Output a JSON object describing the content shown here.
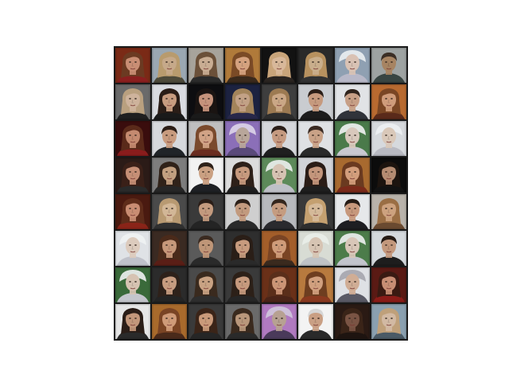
{
  "figure": {
    "description_rows": 8,
    "description_cols": 8,
    "tiles": [
      {
        "bg": "#7a2a16",
        "skin": "#c98e74",
        "hair": "#6b3a22",
        "cloth": "#8a1f1f",
        "hair_style": "long"
      },
      {
        "bg": "#9aa7b2",
        "skin": "#c6a98a",
        "hair": "#b89b6e",
        "cloth": "#4d4a3a",
        "hair_style": "long"
      },
      {
        "bg": "#a7a39b",
        "skin": "#c9ad93",
        "hair": "#6b5039",
        "cloth": "#2b2b2b",
        "hair_style": "long"
      },
      {
        "bg": "#b07a3a",
        "skin": "#d5a27f",
        "hair": "#7a4a26",
        "cloth": "#3b2a1c",
        "hair_style": "long"
      },
      {
        "bg": "#121212",
        "skin": "#d8b89a",
        "hair": "#c8a47a",
        "cloth": "#2a2420",
        "hair_style": "long"
      },
      {
        "bg": "#2a2a2a",
        "skin": "#c9ae8c",
        "hair": "#b7915f",
        "cloth": "#333",
        "hair_style": "long"
      },
      {
        "bg": "#8fa0b2",
        "skin": "#d9c2b4",
        "hair": "#e7ecef",
        "cloth": "#b8b8c8",
        "hair_style": "hat"
      },
      {
        "bg": "#9ea3a2",
        "skin": "#a78462",
        "hair": "#3b2e25",
        "cloth": "#384542",
        "hair_style": "short"
      },
      {
        "bg": "#6a6a6a",
        "skin": "#ceb39c",
        "hair": "#b9a07f",
        "cloth": "#202020",
        "hair_style": "long"
      },
      {
        "bg": "#d9dbe0",
        "skin": "#c79c80",
        "hair": "#2a1d17",
        "cloth": "#1a1a1a",
        "hair_style": "long"
      },
      {
        "bg": "#0d0d10",
        "skin": "#c5937c",
        "hair": "#1a1412",
        "cloth": "#1a1a1a",
        "hair_style": "long"
      },
      {
        "bg": "#1c2240",
        "skin": "#c2a186",
        "hair": "#a3845b",
        "cloth": "#28284a",
        "hair_style": "long"
      },
      {
        "bg": "#3e3e3e",
        "skin": "#caa786",
        "hair": "#9c7a52",
        "cloth": "#2d2d2d",
        "hair_style": "long"
      },
      {
        "bg": "#c9ccd0",
        "skin": "#c69a7e",
        "hair": "#2a1e17",
        "cloth": "#1c1c1c",
        "hair_style": "short"
      },
      {
        "bg": "#e1e3e6",
        "skin": "#c79f86",
        "hair": "#2f231c",
        "cloth": "#30333a",
        "hair_style": "short"
      },
      {
        "bg": "#b86a30",
        "skin": "#cf9c7b",
        "hair": "#7a4624",
        "cloth": "#5a2a1a",
        "hair_style": "long"
      },
      {
        "bg": "#3a0d0d",
        "skin": "#c48a70",
        "hair": "#5a2a1a",
        "cloth": "#8a1c1c",
        "hair_style": "long"
      },
      {
        "bg": "#d6d8dc",
        "skin": "#c89b7e",
        "hair": "#2b1d16",
        "cloth": "#202428",
        "hair_style": "short"
      },
      {
        "bg": "#bfbfbf",
        "skin": "#d1a386",
        "hair": "#7a4a2c",
        "cloth": "#6a2c20",
        "hair_style": "long"
      },
      {
        "bg": "#8b6fb8",
        "skin": "#b8a69a",
        "hair": "#d9d0e6",
        "cloth": "#5a4a7a",
        "hair_style": "hat"
      },
      {
        "bg": "#d5d7db",
        "skin": "#c59a80",
        "hair": "#2a1e18",
        "cloth": "#1f1f1f",
        "hair_style": "short"
      },
      {
        "bg": "#dfe1e4",
        "skin": "#c9a287",
        "hair": "#3a2a22",
        "cloth": "#2a2a2a",
        "hair_style": "short"
      },
      {
        "bg": "#4a7a4a",
        "skin": "#d8c8bc",
        "hair": "#e9ecea",
        "cloth": "#c8c8d0",
        "hair_style": "hat"
      },
      {
        "bg": "#d6d9dd",
        "skin": "#d9c8b9",
        "hair": "#eceff1",
        "cloth": "#b9bac2",
        "hair_style": "hat"
      },
      {
        "bg": "#2b1b17",
        "skin": "#c68f76",
        "hair": "#3a2018",
        "cloth": "#2a2a2a",
        "hair_style": "long"
      },
      {
        "bg": "#7d7d7d",
        "skin": "#c3a080",
        "hair": "#302219",
        "cloth": "#262626",
        "hair_style": "long"
      },
      {
        "bg": "#f2f2f2",
        "skin": "#caa082",
        "hair": "#2e2119",
        "cloth": "#1e2024",
        "hair_style": "short"
      },
      {
        "bg": "#dcdcdc",
        "skin": "#c79a7e",
        "hair": "#2d2019",
        "cloth": "#1f1f1f",
        "hair_style": "long"
      },
      {
        "bg": "#5d8a5a",
        "skin": "#d6c3b3",
        "hair": "#e6ebe8",
        "cloth": "#bec0c8",
        "hair_style": "hat"
      },
      {
        "bg": "#d2d4d8",
        "skin": "#c4967c",
        "hair": "#2a1c16",
        "cloth": "#1e1e1e",
        "hair_style": "long"
      },
      {
        "bg": "#a86a2f",
        "skin": "#d39e7c",
        "hair": "#6a3a20",
        "cloth": "#7a2a1a",
        "hair_style": "long"
      },
      {
        "bg": "#0c0c0c",
        "skin": "#b58c72",
        "hair": "#1c140f",
        "cloth": "#121212",
        "hair_style": "long"
      },
      {
        "bg": "#4a1a10",
        "skin": "#c98d73",
        "hair": "#5e2c1a",
        "cloth": "#8a2418",
        "hair_style": "long"
      },
      {
        "bg": "#4a4a4a",
        "skin": "#d2b797",
        "hair": "#b89a72",
        "cloth": "#303030",
        "hair_style": "long"
      },
      {
        "bg": "#3a3a3a",
        "skin": "#c39a7e",
        "hair": "#2a1d17",
        "cloth": "#242424",
        "hair_style": "short"
      },
      {
        "bg": "#cfcfcf",
        "skin": "#c29a7e",
        "hair": "#2c2018",
        "cloth": "#2a2a2a",
        "hair_style": "short"
      },
      {
        "bg": "#b7b9bd",
        "skin": "#c59c80",
        "hair": "#34261d",
        "cloth": "#2a2a2e",
        "hair_style": "short"
      },
      {
        "bg": "#3a3a3a",
        "skin": "#d4b999",
        "hair": "#c4a070",
        "cloth": "#2e2e2e",
        "hair_style": "long"
      },
      {
        "bg": "#e6e8ea",
        "skin": "#c7987c",
        "hair": "#261b15",
        "cloth": "#1e1e22",
        "hair_style": "short"
      },
      {
        "bg": "#b9b3ab",
        "skin": "#cda27f",
        "hair": "#9a6e44",
        "cloth": "#6a4a30",
        "hair_style": "long"
      },
      {
        "bg": "#dfe2e6",
        "skin": "#dccbbd",
        "hair": "#eef1f2",
        "cloth": "#c0c2ca",
        "hair_style": "hat"
      },
      {
        "bg": "#3a2a22",
        "skin": "#c7987a",
        "hair": "#4a2a1a",
        "cloth": "#5a1e16",
        "hair_style": "long"
      },
      {
        "bg": "#5a5a5a",
        "skin": "#bf9678",
        "hair": "#3a2a20",
        "cloth": "#2a2a2a",
        "hair_style": "short"
      },
      {
        "bg": "#2e2e2e",
        "skin": "#c79b7e",
        "hair": "#2a1e17",
        "cloth": "#2a2a2a",
        "hair_style": "long"
      },
      {
        "bg": "#a35e2a",
        "skin": "#cf9c7a",
        "hair": "#7a4424",
        "cloth": "#3a2a1e",
        "hair_style": "long"
      },
      {
        "bg": "#d8dcd4",
        "skin": "#d6c4b3",
        "hair": "#e9ede8",
        "cloth": "#bfc3c6",
        "hair_style": "hat"
      },
      {
        "bg": "#4c7c4a",
        "skin": "#d8c6b8",
        "hair": "#e6ebe8",
        "cloth": "#c2c4cc",
        "hair_style": "hat"
      },
      {
        "bg": "#d4d8dc",
        "skin": "#c3987c",
        "hair": "#251a14",
        "cloth": "#1d1d1d",
        "hair_style": "short"
      },
      {
        "bg": "#3a6a3a",
        "skin": "#d6c3b2",
        "hair": "#e7ece9",
        "cloth": "#c4c6cc",
        "hair_style": "hat"
      },
      {
        "bg": "#2b2b2b",
        "skin": "#c79c80",
        "hair": "#2e211a",
        "cloth": "#242424",
        "hair_style": "long"
      },
      {
        "bg": "#4a4a4a",
        "skin": "#c9a283",
        "hair": "#3a2a1e",
        "cloth": "#2e2e2e",
        "hair_style": "long"
      },
      {
        "bg": "#3a3a3a",
        "skin": "#c69a7e",
        "hair": "#2c2018",
        "cloth": "#262626",
        "hair_style": "long"
      },
      {
        "bg": "#6a3018",
        "skin": "#cb9576",
        "hair": "#5a2e1a",
        "cloth": "#4a2418",
        "hair_style": "long"
      },
      {
        "bg": "#b87a3e",
        "skin": "#d1a07f",
        "hair": "#6e3e20",
        "cloth": "#8a3a20",
        "hair_style": "long"
      },
      {
        "bg": "#dfe1e5",
        "skin": "#d0ad95",
        "hair": "#a8a8b0",
        "cloth": "#5a5a66",
        "hair_style": "hat"
      },
      {
        "bg": "#5a1a14",
        "skin": "#c88e74",
        "hair": "#3a1a12",
        "cloth": "#8a1c18",
        "hair_style": "long"
      },
      {
        "bg": "#e6e6e6",
        "skin": "#c3977b",
        "hair": "#2a1d17",
        "cloth": "#2a2a2a",
        "hair_style": "long"
      },
      {
        "bg": "#a86a2c",
        "skin": "#cf9b79",
        "hair": "#7a4424",
        "cloth": "#4a2a1a",
        "hair_style": "long"
      },
      {
        "bg": "#3a3a3a",
        "skin": "#c99a7a",
        "hair": "#3a2418",
        "cloth": "#262626",
        "hair_style": "long"
      },
      {
        "bg": "#6a6a6a",
        "skin": "#b9977b",
        "hair": "#3a2a1e",
        "cloth": "#2a2a2a",
        "hair_style": "long"
      },
      {
        "bg": "#b07ac0",
        "skin": "#b7a192",
        "hair": "#cfc4da",
        "cloth": "#4a3a5a",
        "hair_style": "hat"
      },
      {
        "bg": "#f3f3f3",
        "skin": "#c99f84",
        "hair": "#d6d6d6",
        "cloth": "#2a2a2a",
        "hair_style": "short"
      },
      {
        "bg": "#2a1a14",
        "skin": "#7a5444",
        "hair": "#3a2418",
        "cloth": "#1e1410",
        "hair_style": "long"
      },
      {
        "bg": "#8aa0b0",
        "skin": "#d2b9a3",
        "hair": "#bfa07a",
        "cloth": "#4a5a66",
        "hair_style": "long"
      }
    ]
  }
}
